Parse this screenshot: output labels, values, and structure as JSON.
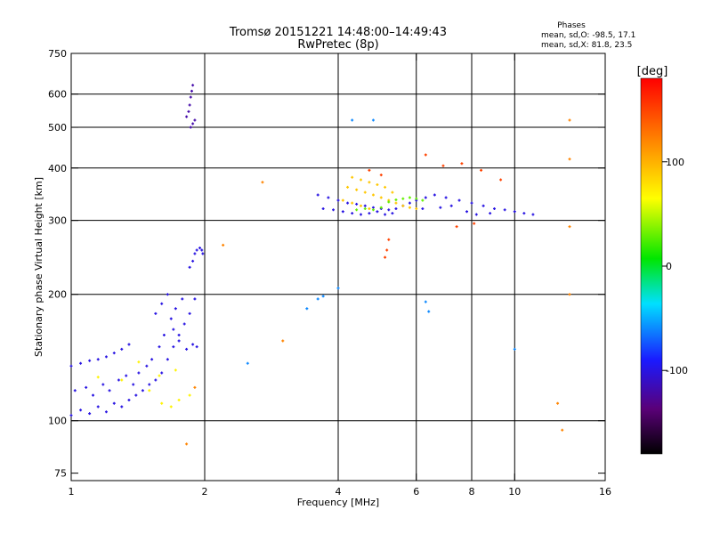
{
  "chart_data": {
    "type": "scatter",
    "title_line1": "Tromsø 20151221 14:48:00–14:49:43",
    "title_line2": "RwPretec (8p)",
    "phases": {
      "heading": "Phases",
      "line1": "mean, sd,O: -98.5, 17.1",
      "line2": "mean, sd,X:  81.8, 23.5"
    },
    "xlabel": "Frequency [MHz]",
    "ylabel": "Stationary phase Virtual Height [km]",
    "x_scale": "log",
    "y_scale": "log",
    "xlim": [
      1,
      16
    ],
    "ylim": [
      72,
      750
    ],
    "x_ticks": [
      1,
      2,
      4,
      6,
      8,
      10,
      16
    ],
    "y_ticks": [
      75,
      100,
      200,
      300,
      400,
      500,
      600,
      750
    ],
    "x_gridlines": [
      2,
      4,
      6,
      8,
      10
    ],
    "y_gridlines": [
      100,
      200,
      300,
      400,
      500,
      600
    ],
    "grid": true,
    "colorbar": {
      "label": "[deg]",
      "range": [
        -180,
        180
      ],
      "ticks": [
        -100,
        0,
        100
      ],
      "colormap": "rainbow: black-purple-blue-cyan-green-yellow-orange-red"
    },
    "clusters": [
      {
        "name": "E/low-F ordinary trace",
        "phase": -100,
        "points": [
          [
            1.0,
            103
          ],
          [
            1.05,
            106
          ],
          [
            1.1,
            104
          ],
          [
            1.15,
            108
          ],
          [
            1.2,
            105
          ],
          [
            1.25,
            110
          ],
          [
            1.3,
            108
          ],
          [
            1.35,
            112
          ],
          [
            1.4,
            115
          ],
          [
            1.45,
            118
          ],
          [
            1.5,
            122
          ],
          [
            1.55,
            125
          ],
          [
            1.6,
            130
          ],
          [
            1.65,
            140
          ],
          [
            1.7,
            150
          ],
          [
            1.75,
            160
          ],
          [
            1.8,
            170
          ],
          [
            1.85,
            180
          ],
          [
            1.9,
            195
          ],
          [
            1.0,
            135
          ],
          [
            1.05,
            137
          ],
          [
            1.1,
            139
          ],
          [
            1.15,
            140
          ],
          [
            1.2,
            142
          ],
          [
            1.25,
            145
          ],
          [
            1.3,
            148
          ],
          [
            1.35,
            152
          ],
          [
            1.02,
            118
          ],
          [
            1.08,
            120
          ],
          [
            1.12,
            115
          ],
          [
            1.18,
            122
          ],
          [
            1.22,
            118
          ],
          [
            1.28,
            125
          ],
          [
            1.33,
            128
          ],
          [
            1.38,
            122
          ],
          [
            1.42,
            130
          ],
          [
            1.48,
            135
          ],
          [
            1.52,
            140
          ],
          [
            1.58,
            150
          ],
          [
            1.62,
            160
          ],
          [
            1.68,
            175
          ],
          [
            1.72,
            185
          ],
          [
            1.78,
            195
          ],
          [
            1.55,
            180
          ],
          [
            1.6,
            190
          ],
          [
            1.65,
            200
          ],
          [
            1.7,
            165
          ],
          [
            1.75,
            155
          ],
          [
            1.82,
            148
          ],
          [
            1.88,
            152
          ],
          [
            1.92,
            150
          ]
        ]
      },
      {
        "name": "low-F scattered mixed",
        "phase": 70,
        "points": [
          [
            1.15,
            127
          ],
          [
            1.3,
            125
          ],
          [
            1.42,
            138
          ],
          [
            1.5,
            118
          ],
          [
            1.6,
            110
          ],
          [
            1.68,
            108
          ],
          [
            1.75,
            112
          ],
          [
            1.58,
            128
          ],
          [
            1.72,
            132
          ],
          [
            1.85,
            115
          ]
        ]
      },
      {
        "name": "steep ascent 1.8-1.9 MHz",
        "phase": -100,
        "points": [
          [
            1.85,
            232
          ],
          [
            1.88,
            240
          ],
          [
            1.9,
            250
          ],
          [
            1.92,
            255
          ],
          [
            1.95,
            258
          ],
          [
            1.97,
            255
          ],
          [
            1.98,
            250
          ]
        ]
      },
      {
        "name": "upper echo 1.85 MHz",
        "phase": -120,
        "points": [
          [
            1.82,
            530
          ],
          [
            1.84,
            545
          ],
          [
            1.85,
            565
          ],
          [
            1.86,
            590
          ],
          [
            1.87,
            610
          ],
          [
            1.88,
            630
          ],
          [
            1.86,
            500
          ],
          [
            1.88,
            510
          ],
          [
            1.9,
            520
          ]
        ]
      },
      {
        "name": "F-layer ordinary trace",
        "phase": -100,
        "points": [
          [
            3.6,
            345
          ],
          [
            3.8,
            340
          ],
          [
            4.0,
            335
          ],
          [
            4.2,
            330
          ],
          [
            4.4,
            328
          ],
          [
            4.6,
            325
          ],
          [
            4.8,
            322
          ],
          [
            5.0,
            320
          ],
          [
            5.2,
            318
          ],
          [
            5.4,
            320
          ],
          [
            5.6,
            325
          ],
          [
            5.8,
            330
          ],
          [
            6.0,
            335
          ],
          [
            6.3,
            340
          ],
          [
            6.6,
            345
          ],
          [
            7.0,
            340
          ],
          [
            7.5,
            335
          ],
          [
            8.0,
            330
          ],
          [
            8.5,
            325
          ],
          [
            9.0,
            320
          ],
          [
            9.5,
            318
          ],
          [
            10.0,
            315
          ],
          [
            10.5,
            312
          ],
          [
            11.0,
            310
          ],
          [
            3.7,
            320
          ],
          [
            3.9,
            318
          ],
          [
            4.1,
            315
          ],
          [
            4.3,
            312
          ],
          [
            4.5,
            310
          ],
          [
            4.7,
            312
          ],
          [
            4.9,
            315
          ],
          [
            5.1,
            310
          ],
          [
            5.3,
            312
          ],
          [
            6.2,
            320
          ],
          [
            6.8,
            322
          ],
          [
            7.2,
            325
          ],
          [
            7.8,
            315
          ],
          [
            8.2,
            310
          ],
          [
            8.8,
            312
          ]
        ]
      },
      {
        "name": "F-layer extraordinary trace",
        "phase": 90,
        "points": [
          [
            4.2,
            360
          ],
          [
            4.4,
            355
          ],
          [
            4.6,
            350
          ],
          [
            4.8,
            345
          ],
          [
            5.0,
            340
          ],
          [
            5.2,
            335
          ],
          [
            5.4,
            330
          ],
          [
            5.6,
            325
          ],
          [
            5.8,
            322
          ],
          [
            6.0,
            320
          ],
          [
            4.3,
            380
          ],
          [
            4.5,
            375
          ],
          [
            4.7,
            370
          ],
          [
            4.9,
            365
          ],
          [
            5.1,
            360
          ],
          [
            5.3,
            350
          ],
          [
            4.1,
            335
          ],
          [
            4.3,
            330
          ],
          [
            4.5,
            325
          ],
          [
            4.7,
            320
          ]
        ]
      },
      {
        "name": "F-layer green band",
        "phase": 30,
        "points": [
          [
            5.2,
            332
          ],
          [
            5.4,
            336
          ],
          [
            5.6,
            338
          ],
          [
            5.8,
            340
          ],
          [
            6.0,
            338
          ],
          [
            6.2,
            335
          ],
          [
            4.4,
            318
          ],
          [
            4.6,
            320
          ],
          [
            4.8,
            318
          ],
          [
            5.0,
            322
          ]
        ]
      },
      {
        "name": "F-layer warm scatter",
        "phase": 150,
        "points": [
          [
            4.7,
            395
          ],
          [
            5.0,
            385
          ],
          [
            5.2,
            270
          ],
          [
            5.15,
            255
          ],
          [
            5.1,
            245
          ],
          [
            6.3,
            430
          ],
          [
            6.9,
            405
          ],
          [
            7.6,
            410
          ],
          [
            8.4,
            395
          ],
          [
            9.3,
            375
          ],
          [
            7.4,
            290
          ],
          [
            8.1,
            295
          ]
        ]
      },
      {
        "name": "isolated points",
        "phase": -60,
        "points": [
          [
            3.4,
            185
          ],
          [
            3.6,
            195
          ],
          [
            3.7,
            198
          ],
          [
            4.0,
            207
          ],
          [
            4.3,
            520
          ],
          [
            4.8,
            520
          ],
          [
            2.5,
            137
          ],
          [
            6.3,
            192
          ],
          [
            6.4,
            182
          ],
          [
            10.0,
            148
          ]
        ]
      },
      {
        "name": "isolated warm points",
        "phase": 120,
        "points": [
          [
            2.2,
            262
          ],
          [
            2.7,
            370
          ],
          [
            3.0,
            155
          ],
          [
            12.5,
            110
          ],
          [
            12.8,
            95
          ],
          [
            13.3,
            520
          ],
          [
            13.3,
            420
          ],
          [
            13.3,
            290
          ],
          [
            13.3,
            200
          ],
          [
            1.9,
            120
          ],
          [
            1.82,
            88
          ]
        ]
      }
    ]
  }
}
